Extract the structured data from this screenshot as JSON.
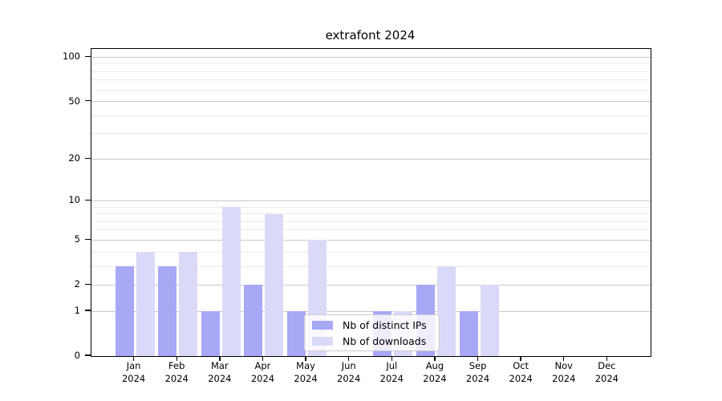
{
  "title": "extrafont 2024",
  "colors": {
    "bar_distinct_ips": "#a8a8f6",
    "bar_downloads": "#dadaf8",
    "grid_major": "#c9c9c9",
    "grid_minor": "#eaeaea",
    "spine": "#000000",
    "legend_border": "#cccccc"
  },
  "legend": {
    "items": [
      {
        "label": "Nb of distinct IPs",
        "color_key": "bar_distinct_ips"
      },
      {
        "label": "Nb of downloads",
        "color_key": "bar_downloads"
      }
    ]
  },
  "chart_data": {
    "type": "bar",
    "title": "extrafont 2024",
    "categories": [
      "Jan",
      "Feb",
      "Mar",
      "Apr",
      "May",
      "Jun",
      "Jul",
      "Aug",
      "Sep",
      "Oct",
      "Nov",
      "Dec"
    ],
    "category_year": "2024",
    "series": [
      {
        "name": "Nb of distinct IPs",
        "values": [
          3,
          3,
          1,
          2,
          1,
          0,
          1,
          2,
          1,
          0,
          0,
          0
        ]
      },
      {
        "name": "Nb of downloads",
        "values": [
          4,
          4,
          9,
          8,
          5,
          0,
          1,
          3,
          2,
          0,
          0,
          0
        ]
      }
    ],
    "xlabel": "",
    "ylabel": "",
    "yscale": "log1p",
    "ylim": [
      0,
      114
    ],
    "y_tick_labels": [
      "0",
      "1",
      "2",
      "5",
      "10",
      "20",
      "50",
      "100"
    ],
    "y_tick_values": [
      0,
      1,
      2,
      5,
      10,
      20,
      50,
      100
    ],
    "y_minor_gridline_values": [
      3,
      4,
      6,
      7,
      8,
      9,
      30,
      40,
      60,
      70,
      80,
      90
    ],
    "grid": true,
    "legend_position": "inside lower center"
  }
}
